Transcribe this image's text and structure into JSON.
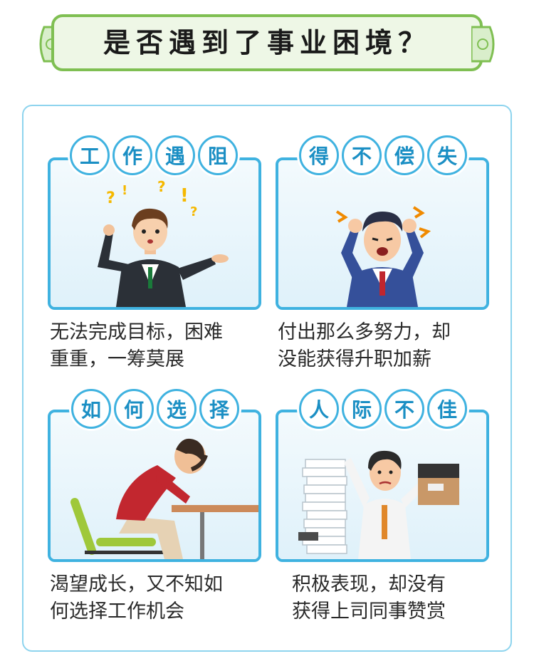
{
  "title": "是否遇到了事业困境？",
  "cards": [
    {
      "tags": [
        "工",
        "作",
        "遇",
        "阻"
      ],
      "desc_line1": "无法完成目标，困难",
      "desc_line2": "重重，一筹莫展"
    },
    {
      "tags": [
        "得",
        "不",
        "偿",
        "失"
      ],
      "desc_line1": "付出那么多努力，却",
      "desc_line2": "没能获得升职加薪"
    },
    {
      "tags": [
        "如",
        "何",
        "选",
        "择"
      ],
      "desc_line1": "渴望成长，又不知如",
      "desc_line2": "何选择工作机会"
    },
    {
      "tags": [
        "人",
        "际",
        "不",
        "佳"
      ],
      "desc_line1": "积极表现，却没有",
      "desc_line2": "获得上司同事赞赏"
    }
  ],
  "colors": {
    "accent": "#3fb2e0",
    "tag_text": "#1b8fc4",
    "banner_border": "#7fbf52",
    "banner_fill": "#eef7e6"
  }
}
